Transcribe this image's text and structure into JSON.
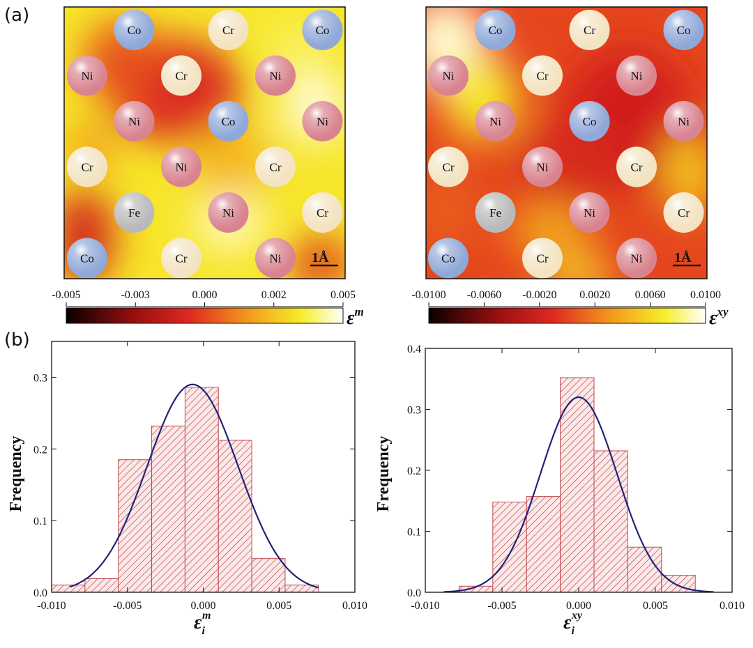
{
  "panel_labels": {
    "a": "(a)",
    "b": "(b)"
  },
  "maps": [
    {
      "id": "map-m",
      "scale_bar": "1Å",
      "colorbar_ticks": [
        "-0.005",
        "-0.003",
        "0.000",
        "0.002",
        "0.005"
      ],
      "colorbar_label": "ε",
      "colorbar_label_sup": "m",
      "atoms": [
        {
          "el": "Co",
          "col": 1,
          "row": 0
        },
        {
          "el": "Cr",
          "col": 3,
          "row": 0
        },
        {
          "el": "Co",
          "col": 5,
          "row": 0
        },
        {
          "el": "Ni",
          "col": 0,
          "row": 1
        },
        {
          "el": "Cr",
          "col": 2,
          "row": 1
        },
        {
          "el": "Ni",
          "col": 4,
          "row": 1
        },
        {
          "el": "Ni",
          "col": 1,
          "row": 2
        },
        {
          "el": "Co",
          "col": 3,
          "row": 2
        },
        {
          "el": "Ni",
          "col": 5,
          "row": 2
        },
        {
          "el": "Cr",
          "col": 0,
          "row": 3
        },
        {
          "el": "Ni",
          "col": 2,
          "row": 3
        },
        {
          "el": "Cr",
          "col": 4,
          "row": 3
        },
        {
          "el": "Fe",
          "col": 1,
          "row": 4
        },
        {
          "el": "Ni",
          "col": 3,
          "row": 4
        },
        {
          "el": "Cr",
          "col": 5,
          "row": 4
        },
        {
          "el": "Co",
          "col": 0,
          "row": 5
        },
        {
          "el": "Cr",
          "col": 2,
          "row": 5
        },
        {
          "el": "Ni",
          "col": 4,
          "row": 5
        }
      ]
    },
    {
      "id": "map-xy",
      "scale_bar": "1Å",
      "colorbar_ticks": [
        "-0.0100",
        "-0.0060",
        "-0.0020",
        "0.0020",
        "0.0060",
        "0.0100"
      ],
      "colorbar_label": "ε",
      "colorbar_label_sup": "xy",
      "atoms": [
        {
          "el": "Co",
          "col": 1,
          "row": 0
        },
        {
          "el": "Cr",
          "col": 3,
          "row": 0
        },
        {
          "el": "Co",
          "col": 5,
          "row": 0
        },
        {
          "el": "Ni",
          "col": 0,
          "row": 1
        },
        {
          "el": "Cr",
          "col": 2,
          "row": 1
        },
        {
          "el": "Ni",
          "col": 4,
          "row": 1
        },
        {
          "el": "Ni",
          "col": 1,
          "row": 2
        },
        {
          "el": "Co",
          "col": 3,
          "row": 2
        },
        {
          "el": "Ni",
          "col": 5,
          "row": 2
        },
        {
          "el": "Cr",
          "col": 0,
          "row": 3
        },
        {
          "el": "Ni",
          "col": 2,
          "row": 3
        },
        {
          "el": "Cr",
          "col": 4,
          "row": 3
        },
        {
          "el": "Fe",
          "col": 1,
          "row": 4
        },
        {
          "el": "Ni",
          "col": 3,
          "row": 4
        },
        {
          "el": "Cr",
          "col": 5,
          "row": 4
        },
        {
          "el": "Co",
          "col": 0,
          "row": 5
        },
        {
          "el": "Cr",
          "col": 2,
          "row": 5
        },
        {
          "el": "Ni",
          "col": 4,
          "row": 5
        }
      ]
    }
  ],
  "atom_colors": {
    "Co": "#8fa8d8",
    "Cr": "#f3e3c0",
    "Ni": "#d9838e",
    "Fe": "#b9b9b9"
  },
  "heat_colors": {
    "dark": "#1a0000",
    "red": "#d42020",
    "orange": "#f39a1c",
    "yellow": "#f6ee2a",
    "white": "#fffdf0"
  },
  "chart_data": [
    {
      "type": "bar",
      "subtype": "histogram",
      "ylabel": "Frequency",
      "xlabel": "ε",
      "xlabel_sub": "i",
      "xlabel_sup": "m",
      "xlim": [
        -0.01,
        0.01
      ],
      "ylim": [
        0,
        0.35
      ],
      "x_ticks": [
        "-0.010",
        "-0.005",
        "0.000",
        "0.005",
        "0.010"
      ],
      "x_tick_values": [
        -0.01,
        -0.005,
        0.0,
        0.005,
        0.01
      ],
      "y_ticks": [
        "0.0",
        "0.1",
        "0.2",
        "0.3"
      ],
      "y_tick_values": [
        0.0,
        0.1,
        0.2,
        0.3
      ],
      "bin_edges": [
        -0.01,
        -0.0078,
        -0.0056,
        -0.0034,
        -0.0012,
        0.001,
        0.0032,
        0.0054,
        0.0076
      ],
      "values": [
        0.01,
        0.019,
        0.185,
        0.232,
        0.286,
        0.212,
        0.047,
        0.01
      ],
      "fit": {
        "type": "gaussian",
        "amp": 0.29,
        "mean": -0.0007,
        "sigma": 0.003,
        "x_range": [
          -0.0088,
          0.0076
        ]
      },
      "bar_color": "#c0484c",
      "fit_color": "#1f2478"
    },
    {
      "type": "bar",
      "subtype": "histogram",
      "ylabel": "Frequency",
      "xlabel": "ε",
      "xlabel_sub": "i",
      "xlabel_sup": "xy",
      "xlim": [
        -0.01,
        0.01
      ],
      "ylim": [
        0,
        0.4
      ],
      "x_ticks": [
        "-0.010",
        "-0.005",
        "0.000",
        "0.005",
        "0.010"
      ],
      "x_tick_values": [
        -0.01,
        -0.005,
        0.0,
        0.005,
        0.01
      ],
      "y_ticks": [
        "0.0",
        "0.1",
        "0.2",
        "0.3",
        "0.4"
      ],
      "y_tick_values": [
        0.0,
        0.1,
        0.2,
        0.3,
        0.4
      ],
      "bin_edges": [
        -0.0078,
        -0.0056,
        -0.0034,
        -0.0012,
        0.001,
        0.0032,
        0.0054,
        0.0076
      ],
      "values": [
        0.01,
        0.148,
        0.157,
        0.352,
        0.232,
        0.074,
        0.028
      ],
      "fit": {
        "type": "gaussian",
        "amp": 0.32,
        "mean": 0.0,
        "sigma": 0.0025,
        "x_range": [
          -0.0088,
          0.0088
        ]
      },
      "bar_color": "#c0484c",
      "fit_color": "#1f2478"
    }
  ]
}
